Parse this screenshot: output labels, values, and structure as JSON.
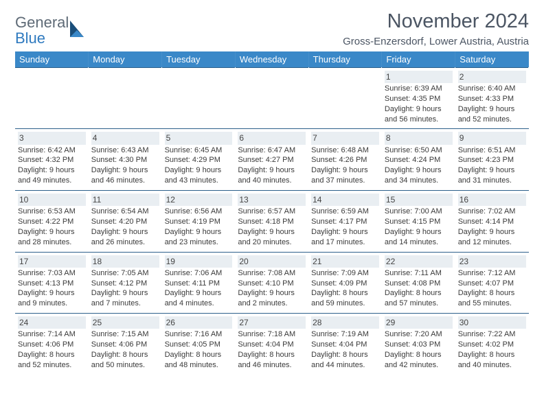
{
  "brand": {
    "word1": "General",
    "word2": "Blue",
    "word2_color": "#2f7abf",
    "word1_color": "#5e6a76",
    "sail_dark": "#1a4e7a",
    "sail_light": "#3a88c8"
  },
  "header": {
    "title": "November 2024",
    "location": "Gross-Enzersdorf, Lower Austria, Austria"
  },
  "style": {
    "header_bg": "#3a88c8",
    "header_fg": "#ffffff",
    "row_border": "#2b5f8a",
    "daynum_bg": "#e9eef2",
    "text_color": "#3a3a3a",
    "font_size_cell": 11,
    "font_size_header": 13,
    "font_size_title": 29,
    "font_size_location": 15
  },
  "day_headers": [
    "Sunday",
    "Monday",
    "Tuesday",
    "Wednesday",
    "Thursday",
    "Friday",
    "Saturday"
  ],
  "weeks": [
    [
      {
        "n": "",
        "sr": "",
        "ss": "",
        "dl": ""
      },
      {
        "n": "",
        "sr": "",
        "ss": "",
        "dl": ""
      },
      {
        "n": "",
        "sr": "",
        "ss": "",
        "dl": ""
      },
      {
        "n": "",
        "sr": "",
        "ss": "",
        "dl": ""
      },
      {
        "n": "",
        "sr": "",
        "ss": "",
        "dl": ""
      },
      {
        "n": "1",
        "sr": "Sunrise: 6:39 AM",
        "ss": "Sunset: 4:35 PM",
        "dl": "Daylight: 9 hours and 56 minutes."
      },
      {
        "n": "2",
        "sr": "Sunrise: 6:40 AM",
        "ss": "Sunset: 4:33 PM",
        "dl": "Daylight: 9 hours and 52 minutes."
      }
    ],
    [
      {
        "n": "3",
        "sr": "Sunrise: 6:42 AM",
        "ss": "Sunset: 4:32 PM",
        "dl": "Daylight: 9 hours and 49 minutes."
      },
      {
        "n": "4",
        "sr": "Sunrise: 6:43 AM",
        "ss": "Sunset: 4:30 PM",
        "dl": "Daylight: 9 hours and 46 minutes."
      },
      {
        "n": "5",
        "sr": "Sunrise: 6:45 AM",
        "ss": "Sunset: 4:29 PM",
        "dl": "Daylight: 9 hours and 43 minutes."
      },
      {
        "n": "6",
        "sr": "Sunrise: 6:47 AM",
        "ss": "Sunset: 4:27 PM",
        "dl": "Daylight: 9 hours and 40 minutes."
      },
      {
        "n": "7",
        "sr": "Sunrise: 6:48 AM",
        "ss": "Sunset: 4:26 PM",
        "dl": "Daylight: 9 hours and 37 minutes."
      },
      {
        "n": "8",
        "sr": "Sunrise: 6:50 AM",
        "ss": "Sunset: 4:24 PM",
        "dl": "Daylight: 9 hours and 34 minutes."
      },
      {
        "n": "9",
        "sr": "Sunrise: 6:51 AM",
        "ss": "Sunset: 4:23 PM",
        "dl": "Daylight: 9 hours and 31 minutes."
      }
    ],
    [
      {
        "n": "10",
        "sr": "Sunrise: 6:53 AM",
        "ss": "Sunset: 4:22 PM",
        "dl": "Daylight: 9 hours and 28 minutes."
      },
      {
        "n": "11",
        "sr": "Sunrise: 6:54 AM",
        "ss": "Sunset: 4:20 PM",
        "dl": "Daylight: 9 hours and 26 minutes."
      },
      {
        "n": "12",
        "sr": "Sunrise: 6:56 AM",
        "ss": "Sunset: 4:19 PM",
        "dl": "Daylight: 9 hours and 23 minutes."
      },
      {
        "n": "13",
        "sr": "Sunrise: 6:57 AM",
        "ss": "Sunset: 4:18 PM",
        "dl": "Daylight: 9 hours and 20 minutes."
      },
      {
        "n": "14",
        "sr": "Sunrise: 6:59 AM",
        "ss": "Sunset: 4:17 PM",
        "dl": "Daylight: 9 hours and 17 minutes."
      },
      {
        "n": "15",
        "sr": "Sunrise: 7:00 AM",
        "ss": "Sunset: 4:15 PM",
        "dl": "Daylight: 9 hours and 14 minutes."
      },
      {
        "n": "16",
        "sr": "Sunrise: 7:02 AM",
        "ss": "Sunset: 4:14 PM",
        "dl": "Daylight: 9 hours and 12 minutes."
      }
    ],
    [
      {
        "n": "17",
        "sr": "Sunrise: 7:03 AM",
        "ss": "Sunset: 4:13 PM",
        "dl": "Daylight: 9 hours and 9 minutes."
      },
      {
        "n": "18",
        "sr": "Sunrise: 7:05 AM",
        "ss": "Sunset: 4:12 PM",
        "dl": "Daylight: 9 hours and 7 minutes."
      },
      {
        "n": "19",
        "sr": "Sunrise: 7:06 AM",
        "ss": "Sunset: 4:11 PM",
        "dl": "Daylight: 9 hours and 4 minutes."
      },
      {
        "n": "20",
        "sr": "Sunrise: 7:08 AM",
        "ss": "Sunset: 4:10 PM",
        "dl": "Daylight: 9 hours and 2 minutes."
      },
      {
        "n": "21",
        "sr": "Sunrise: 7:09 AM",
        "ss": "Sunset: 4:09 PM",
        "dl": "Daylight: 8 hours and 59 minutes."
      },
      {
        "n": "22",
        "sr": "Sunrise: 7:11 AM",
        "ss": "Sunset: 4:08 PM",
        "dl": "Daylight: 8 hours and 57 minutes."
      },
      {
        "n": "23",
        "sr": "Sunrise: 7:12 AM",
        "ss": "Sunset: 4:07 PM",
        "dl": "Daylight: 8 hours and 55 minutes."
      }
    ],
    [
      {
        "n": "24",
        "sr": "Sunrise: 7:14 AM",
        "ss": "Sunset: 4:06 PM",
        "dl": "Daylight: 8 hours and 52 minutes."
      },
      {
        "n": "25",
        "sr": "Sunrise: 7:15 AM",
        "ss": "Sunset: 4:06 PM",
        "dl": "Daylight: 8 hours and 50 minutes."
      },
      {
        "n": "26",
        "sr": "Sunrise: 7:16 AM",
        "ss": "Sunset: 4:05 PM",
        "dl": "Daylight: 8 hours and 48 minutes."
      },
      {
        "n": "27",
        "sr": "Sunrise: 7:18 AM",
        "ss": "Sunset: 4:04 PM",
        "dl": "Daylight: 8 hours and 46 minutes."
      },
      {
        "n": "28",
        "sr": "Sunrise: 7:19 AM",
        "ss": "Sunset: 4:04 PM",
        "dl": "Daylight: 8 hours and 44 minutes."
      },
      {
        "n": "29",
        "sr": "Sunrise: 7:20 AM",
        "ss": "Sunset: 4:03 PM",
        "dl": "Daylight: 8 hours and 42 minutes."
      },
      {
        "n": "30",
        "sr": "Sunrise: 7:22 AM",
        "ss": "Sunset: 4:02 PM",
        "dl": "Daylight: 8 hours and 40 minutes."
      }
    ]
  ]
}
